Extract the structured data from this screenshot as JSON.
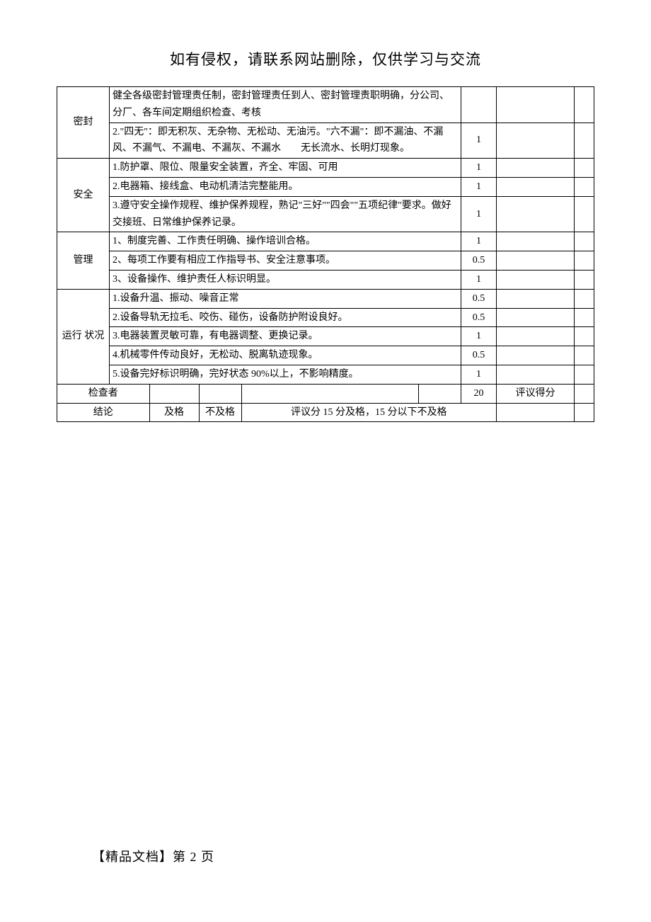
{
  "header": "如有侵权，请联系网站删除，仅供学习与交流",
  "footer": "【精品文档】第 2 页",
  "categories": [
    {
      "name": "密封",
      "rows": [
        {
          "desc": "健全各级密封管理责任制，密封管理责任到人、密封管理责职明确，分公司、分厂、各车间定期组织检查、考核",
          "score": ""
        },
        {
          "desc": "2.\"四无\"：即无积灰、无杂物、无松动、无油污。\"六不漏\"：即不漏油、不漏风、不漏气、不漏电、不漏灰、不漏水　　无长流水、长明灯现象。",
          "score": "1"
        }
      ]
    },
    {
      "name": "安全",
      "rows": [
        {
          "desc": "1.防护罩、限位、限量安全装置，齐全、牢固、可用",
          "score": "1"
        },
        {
          "desc": "2.电器箱、接线盒、电动机清洁完整能用。",
          "score": "1"
        },
        {
          "desc": "3.遵守安全操作规程、维护保养规程，熟记\"三好\"\"四会\"\"五项纪律\"要求。做好交接班、日常维护保养记录。",
          "score": "1"
        }
      ]
    },
    {
      "name": "管理",
      "rows": [
        {
          "desc": "1、制度完善、工作责任明确、操作培训合格。",
          "score": "1"
        },
        {
          "desc": "2、每项工作要有相应工作指导书、安全注意事项。",
          "score": "0.5"
        },
        {
          "desc": "3、设备操作、维护责任人标识明显。",
          "score": "1"
        }
      ]
    },
    {
      "name": "运行 状况",
      "rows": [
        {
          "desc": "1.设备升温、振动、噪音正常",
          "score": "0.5"
        },
        {
          "desc": "2.设备导轨无拉毛、咬伤、碰伤，设备防护附设良好。",
          "score": "0.5"
        },
        {
          "desc": "3.电器装置灵敏可靠，有电器调整、更换记录。",
          "score": "1"
        },
        {
          "desc": "4.机械零件传动良好，无松动、脱离轨迹现象。",
          "score": "0.5"
        },
        {
          "desc": "5.设备完好标识明确，完好状态 90%以上，不影响精度。",
          "score": "1"
        }
      ]
    }
  ],
  "checker_row": {
    "label": "检查者",
    "total": "20",
    "score_label": "评议得分"
  },
  "conclusion_row": {
    "label": "结论",
    "pass": "及格",
    "fail": "不及格",
    "rule": "评议分 15 分及格，15 分以下不及格"
  }
}
